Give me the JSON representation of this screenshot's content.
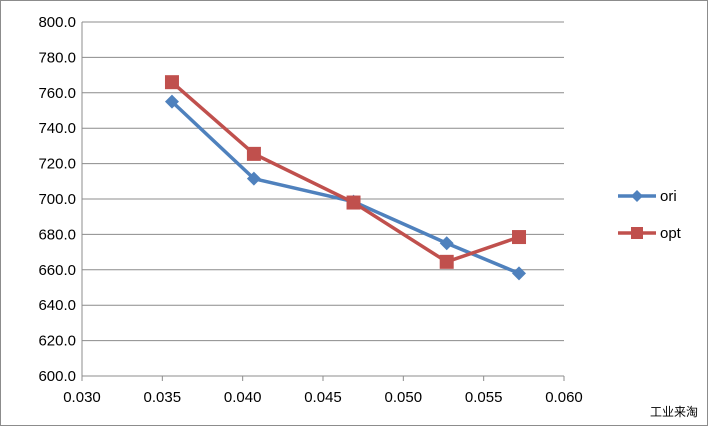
{
  "chart_data": {
    "type": "line",
    "title": "",
    "xlabel": "",
    "ylabel": "",
    "xlim": [
      0.03,
      0.06
    ],
    "ylim": [
      600.0,
      800.0
    ],
    "xticks": [
      "0.030",
      "0.035",
      "0.040",
      "0.045",
      "0.050",
      "0.055",
      "0.060"
    ],
    "yticks": [
      "600.0",
      "620.0",
      "640.0",
      "660.0",
      "680.0",
      "700.0",
      "720.0",
      "740.0",
      "760.0",
      "780.0",
      "800.0"
    ],
    "grid": "horizontal",
    "legend_position": "right",
    "series": [
      {
        "name": "ori",
        "color": "#4f81bd",
        "marker": "diamond",
        "points": [
          {
            "x": 0.0356,
            "y": 755.0
          },
          {
            "x": 0.0407,
            "y": 711.5
          },
          {
            "x": 0.0469,
            "y": 698.5
          },
          {
            "x": 0.0527,
            "y": 675.0
          },
          {
            "x": 0.0572,
            "y": 658.0
          }
        ]
      },
      {
        "name": "opt",
        "color": "#c0504d",
        "marker": "square",
        "points": [
          {
            "x": 0.0356,
            "y": 766.0
          },
          {
            "x": 0.0407,
            "y": 725.5
          },
          {
            "x": 0.0469,
            "y": 698.0
          },
          {
            "x": 0.0527,
            "y": 664.5
          },
          {
            "x": 0.0572,
            "y": 678.5
          }
        ]
      }
    ]
  },
  "watermark": "工业来淘"
}
